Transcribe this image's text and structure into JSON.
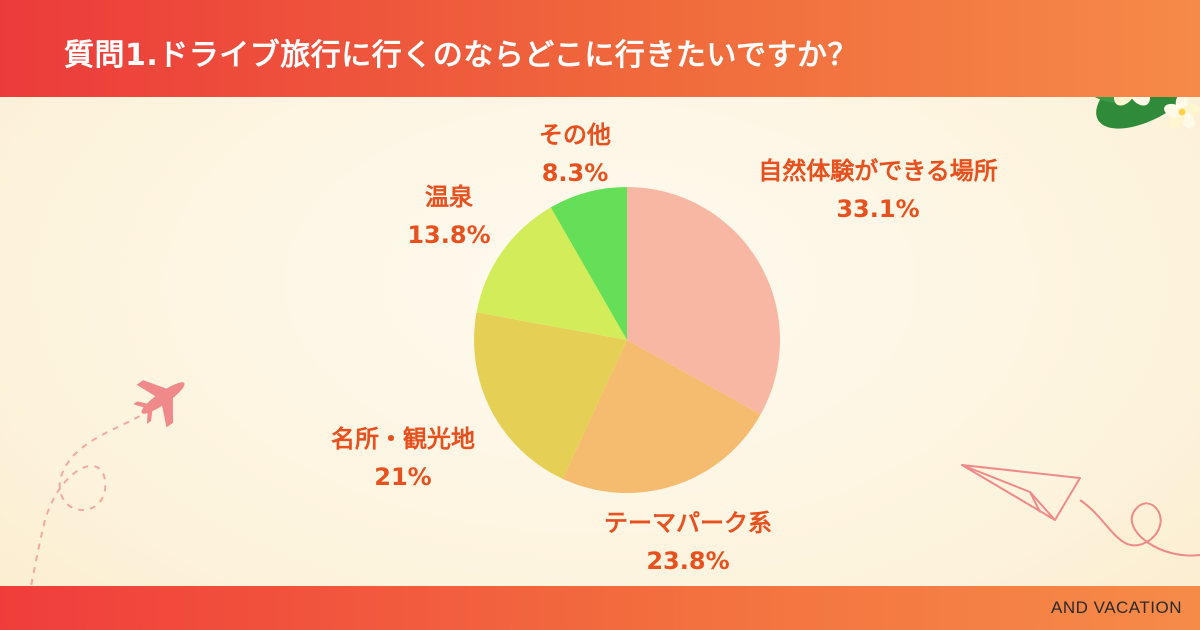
{
  "header": {
    "title": "質問1.ドライブ旅行に行くのならどこに行きたいですか？"
  },
  "footer": {
    "brand": "AND VACATION"
  },
  "chart_data": {
    "type": "pie",
    "start_angle_deg": 0,
    "direction": "clockwise",
    "slices": [
      {
        "label": "自然体験ができる場所",
        "value": 33.1,
        "value_label": "33.1%",
        "color": "#f7b7a3"
      },
      {
        "label": "テーマパーク系",
        "value": 23.8,
        "value_label": "23.8%",
        "color": "#f5bb6e"
      },
      {
        "label": "名所・観光地",
        "value": 21,
        "value_label": "21%",
        "color": "#e6cf55"
      },
      {
        "label": "温泉",
        "value": 13.8,
        "value_label": "13.8%",
        "color": "#d2ec5a"
      },
      {
        "label": "その他",
        "value": 8.3,
        "value_label": "8.3%",
        "color": "#66df58"
      }
    ]
  },
  "colors": {
    "header": "#ec3b3b",
    "label": "#e8501e",
    "footer": "#f03d3b"
  }
}
